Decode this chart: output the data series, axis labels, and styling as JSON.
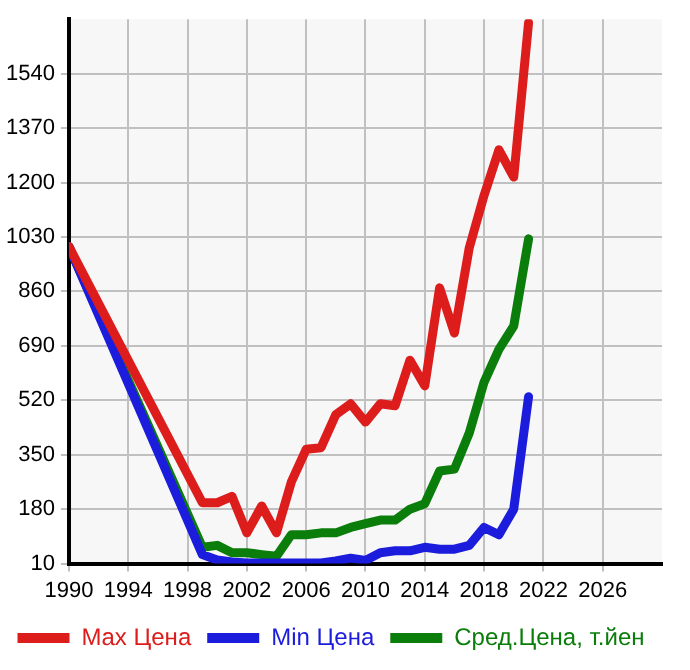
{
  "chart_data": {
    "type": "line",
    "xlim": [
      1990,
      2030
    ],
    "xticks": [
      1990,
      1994,
      1998,
      2002,
      2006,
      2010,
      2014,
      2018,
      2022,
      2026
    ],
    "ylim": [
      10,
      1710
    ],
    "yticks": [
      10,
      180,
      350,
      520,
      690,
      860,
      1030,
      1200,
      1370,
      1540
    ],
    "grid": true,
    "legend": "bottom",
    "marker": "none",
    "line_style": "solid",
    "x": [
      1990,
      1999,
      2000,
      2001,
      2002,
      2003,
      2004,
      2005,
      2006,
      2007,
      2008,
      2009,
      2010,
      2011,
      2012,
      2013,
      2014,
      2015,
      2016,
      2017,
      2018,
      2019,
      2020,
      2021
    ],
    "series": [
      {
        "name": "Max Цена",
        "color": "#dd1c1c",
        "values": [
          1000,
          200,
          200,
          220,
          106,
          190,
          106,
          265,
          367,
          372,
          475,
          509,
          452,
          509,
          503,
          645,
          565,
          871,
          730,
          996,
          1160,
          1302,
          1217,
          1699
        ]
      },
      {
        "name": "Min Цена",
        "color": "#1c1cdd",
        "values": [
          1000,
          38,
          21,
          15,
          12,
          12,
          12,
          12,
          12,
          12,
          18,
          27,
          20,
          44,
          50,
          50,
          61,
          55,
          55,
          67,
          123,
          100,
          180,
          531
        ]
      },
      {
        "name": "Сред.Цена, т.йен",
        "color": "#0a7d0a",
        "values": [
          1000,
          61,
          67,
          44,
          44,
          38,
          33,
          100,
          100,
          106,
          106,
          123,
          135,
          146,
          146,
          180,
          197,
          299,
          305,
          418,
          577,
          679,
          752,
          1024
        ]
      }
    ]
  }
}
